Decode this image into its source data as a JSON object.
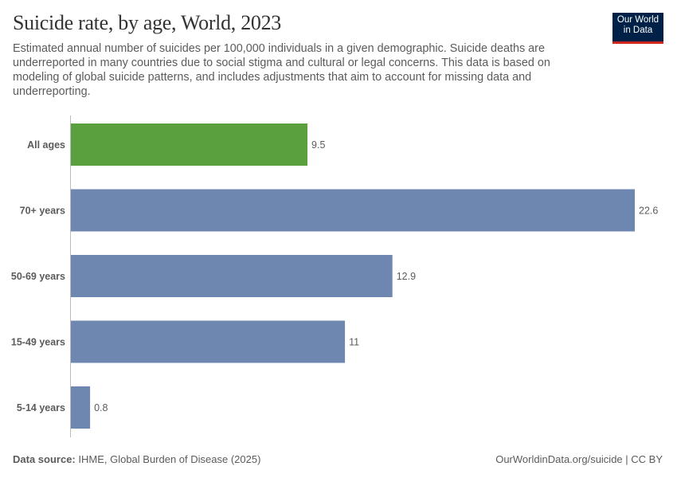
{
  "header": {
    "title": "Suicide rate, by age, World, 2023",
    "subtitle": "Estimated annual number of suicides per 100,000 individuals in a given demographic. Suicide deaths are underreported in many countries due to social stigma and cultural or legal concerns. This data is based on modeling of global suicide patterns, and includes adjustments that aim to account for missing data and underreporting.",
    "logo_line1": "Our World",
    "logo_line2": "in Data"
  },
  "footer": {
    "source_label": "Data source:",
    "source_text": " IHME, Global Burden of Disease (2025)",
    "url": "OurWorldinData.org/suicide | CC BY"
  },
  "chart_data": {
    "type": "bar",
    "orientation": "horizontal",
    "categories": [
      "All ages",
      "70+ years",
      "50-69 years",
      "15-49 years",
      "5-14 years"
    ],
    "values": [
      9.5,
      22.6,
      12.9,
      11,
      0.8
    ],
    "value_labels": [
      "9.5",
      "22.6",
      "12.9",
      "11",
      "0.8"
    ],
    "colors": [
      "#5ba03f",
      "#6d87b0",
      "#6d87b0",
      "#6d87b0",
      "#6d87b0"
    ],
    "xlim": [
      0,
      22.6
    ],
    "grid": false,
    "legend": "none"
  }
}
